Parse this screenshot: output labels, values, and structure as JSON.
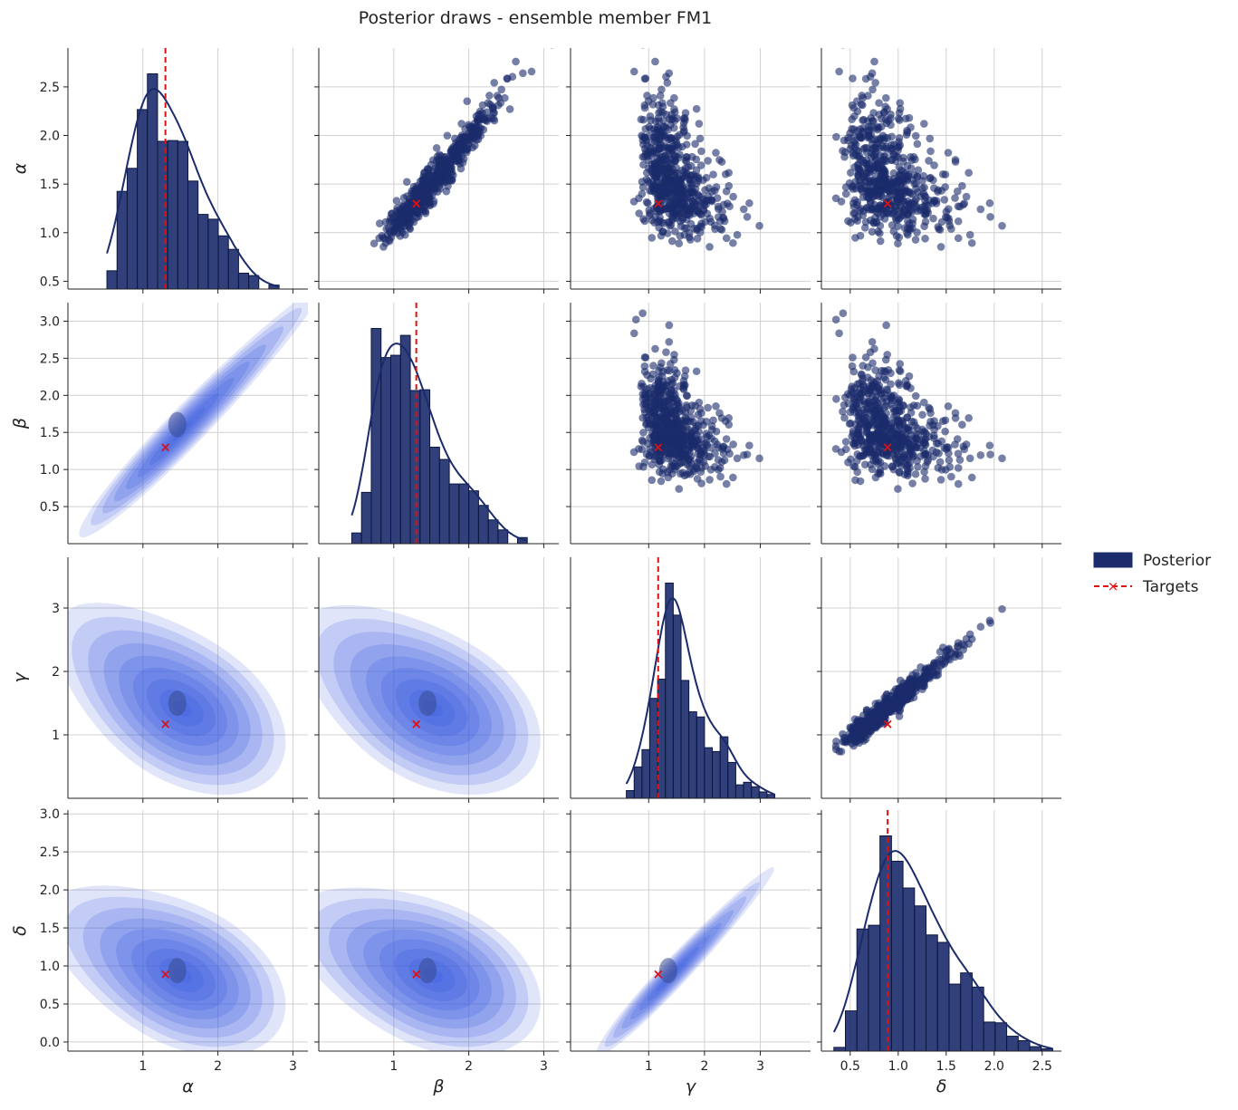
{
  "title": "Posterior draws - ensemble member FM1",
  "colors": {
    "posterior": "#1b2b6b",
    "kde_line": "#1b2b6b",
    "target": "#e01010",
    "grid": "#d0d0d0",
    "kde_fill": "#4060e0"
  },
  "legend": {
    "placement": "right",
    "items": [
      {
        "label": "Posterior",
        "marker": "patch"
      },
      {
        "label": "Targets",
        "marker": "dashed-line-x"
      }
    ]
  },
  "chart_data": {
    "type": "pairplot",
    "parameters": [
      "α",
      "β",
      "γ",
      "δ"
    ],
    "targets": [
      1.3,
      1.3,
      1.17,
      0.89
    ],
    "grid": true,
    "draws": 600,
    "axes": [
      {
        "name": "α",
        "range": [
          0.0,
          3.2
        ],
        "ticks_bottom": [
          1,
          2,
          3
        ],
        "ticks_left": [
          0.5,
          1.0,
          1.5,
          2.0,
          2.5
        ],
        "left_range": [
          0.42,
          2.9
        ]
      },
      {
        "name": "β",
        "range": [
          0.0,
          3.2
        ],
        "ticks_bottom": [
          1,
          2,
          3
        ],
        "ticks_left": [
          0.5,
          1.0,
          1.5,
          2.0,
          2.5,
          3.0
        ],
        "left_range": [
          0.0,
          3.25
        ]
      },
      {
        "name": "γ",
        "range": [
          -0.4,
          3.9
        ],
        "ticks_bottom": [
          1,
          2,
          3
        ],
        "ticks_left": [
          1,
          2,
          3
        ],
        "left_range": [
          -0.0,
          3.8
        ]
      },
      {
        "name": "δ",
        "range": [
          0.2,
          2.7
        ],
        "ticks_bottom": [
          0.5,
          1.0,
          1.5,
          2.0,
          2.5
        ],
        "ticks_left": [
          0.0,
          0.5,
          1.0,
          1.5,
          2.0,
          2.5,
          3.0
        ],
        "left_range": [
          -0.12,
          3.05
        ]
      }
    ],
    "marginals": [
      {
        "name": "α",
        "bin_edges": [
          0.52,
          0.655,
          0.79,
          0.925,
          1.06,
          1.195,
          1.33,
          1.465,
          1.6,
          1.735,
          1.87,
          2.005,
          2.14,
          2.275,
          2.41,
          2.545,
          2.68,
          2.815
        ],
        "counts": [
          0.23,
          1.23,
          1.52,
          2.26,
          2.71,
          1.86,
          1.87,
          1.86,
          1.36,
          0.94,
          0.88,
          0.67,
          0.5,
          0.2,
          0.17,
          0.0,
          0.05
        ]
      },
      {
        "name": "β",
        "bin_edges": [
          0.44,
          0.57,
          0.7,
          0.83,
          0.96,
          1.09,
          1.22,
          1.35,
          1.48,
          1.61,
          1.74,
          1.87,
          2.0,
          2.13,
          2.26,
          2.39,
          2.52,
          2.65,
          2.78
        ],
        "counts": [
          0.14,
          0.67,
          2.81,
          2.43,
          2.46,
          2.72,
          2.0,
          2.01,
          1.26,
          1.1,
          0.78,
          0.78,
          0.69,
          0.5,
          0.31,
          0.18,
          0.0,
          0.08
        ]
      },
      {
        "name": "γ",
        "bin_edges": [
          0.6,
          0.74,
          0.88,
          1.02,
          1.16,
          1.3,
          1.44,
          1.58,
          1.72,
          1.86,
          2.0,
          2.14,
          2.28,
          2.42,
          2.56,
          2.7,
          2.84,
          2.98,
          3.12,
          3.26
        ],
        "counts": [
          0.12,
          0.49,
          0.76,
          1.56,
          1.86,
          3.36,
          2.86,
          1.84,
          1.35,
          1.27,
          0.79,
          0.73,
          0.96,
          0.56,
          0.21,
          0.25,
          0.18,
          0.1,
          0.06
        ]
      },
      {
        "name": "δ",
        "bin_edges": [
          0.33,
          0.45,
          0.57,
          0.69,
          0.81,
          0.93,
          1.05,
          1.17,
          1.29,
          1.41,
          1.53,
          1.65,
          1.77,
          1.89,
          2.01,
          2.13,
          2.25,
          2.37,
          2.49,
          2.61
        ],
        "counts": [
          0.05,
          0.54,
          1.64,
          1.69,
          2.89,
          2.55,
          2.19,
          1.95,
          1.56,
          1.46,
          0.9,
          1.05,
          0.86,
          0.39,
          0.38,
          0.2,
          0.14,
          0.06,
          0.03
        ]
      }
    ],
    "correlation": [
      [
        1.0,
        0.97,
        -0.45,
        -0.45
      ],
      [
        0.97,
        1.0,
        -0.45,
        -0.45
      ],
      [
        -0.45,
        -0.45,
        1.0,
        0.97
      ],
      [
        -0.45,
        -0.45,
        0.97,
        1.0
      ]
    ],
    "upper": "scatter",
    "diag": "histogram+kde",
    "lower": "filled-kde-contours"
  }
}
